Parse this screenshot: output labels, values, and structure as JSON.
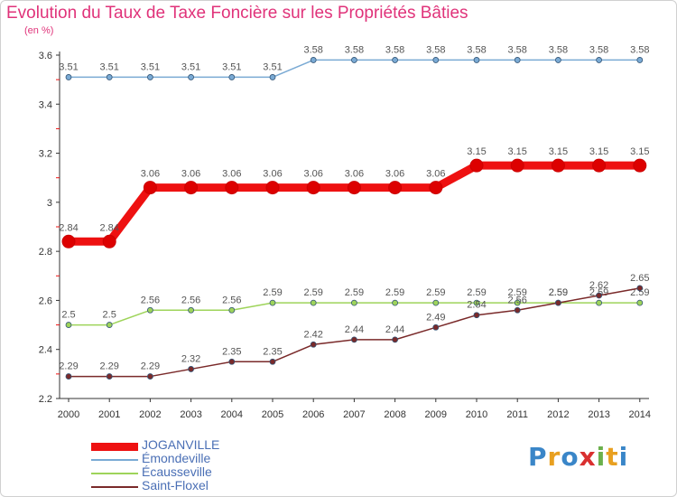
{
  "title": "Evolution du Taux de Taxe Foncière sur les Propriétés Bâties",
  "unit_label": "(en %)",
  "logo": {
    "letters": [
      "P",
      "r",
      "o",
      "x",
      "i",
      "t",
      "i"
    ],
    "colors": [
      "#3a86c8",
      "#e8a020",
      "#3a86c8",
      "#d93030",
      "#6ab04c",
      "#e8a020",
      "#3a86c8"
    ]
  },
  "chart_data": {
    "type": "line",
    "x": [
      "2000",
      "2001",
      "2002",
      "2003",
      "2004",
      "2005",
      "2006",
      "2007",
      "2008",
      "2009",
      "2010",
      "2011",
      "2012",
      "2013",
      "2014"
    ],
    "yticks": [
      "2.2",
      "2.4",
      "2.6",
      "2.8",
      "3",
      "3.2",
      "3.4",
      "3.6"
    ],
    "ylim": [
      2.2,
      3.6
    ],
    "grid": false,
    "legend_position": "bottom-left",
    "series": [
      {
        "name": "JOGANVILLE",
        "color": "#ee1111",
        "width": 9,
        "marker": 7,
        "values": [
          2.84,
          2.84,
          3.06,
          3.06,
          3.06,
          3.06,
          3.06,
          3.06,
          3.06,
          3.06,
          3.15,
          3.15,
          3.15,
          3.15,
          3.15
        ],
        "labels": [
          "2.84",
          "2.84",
          "3.06",
          "3.06",
          "3.06",
          "3.06",
          "3.06",
          "3.06",
          "3.06",
          "3.06",
          "3.15",
          "3.15",
          "3.15",
          "3.15",
          "3.15"
        ]
      },
      {
        "name": "Émondeville",
        "color": "#7aaad4",
        "width": 1.5,
        "marker": 3,
        "values": [
          3.51,
          3.51,
          3.51,
          3.51,
          3.51,
          3.51,
          3.58,
          3.58,
          3.58,
          3.58,
          3.58,
          3.58,
          3.58,
          3.58,
          3.58
        ],
        "labels": [
          "3.51",
          "3.51",
          "3.51",
          "3.51",
          "3.51",
          "3.51",
          "3.58",
          "3.58",
          "3.58",
          "3.58",
          "3.58",
          "3.58",
          "3.58",
          "3.58",
          "3.58"
        ]
      },
      {
        "name": "Écausseville",
        "color": "#9ed45a",
        "width": 1.5,
        "marker": 3,
        "values": [
          2.5,
          2.5,
          2.56,
          2.56,
          2.56,
          2.59,
          2.59,
          2.59,
          2.59,
          2.59,
          2.59,
          2.59,
          2.59,
          2.59,
          2.59
        ],
        "labels": [
          "2.5",
          "2.5",
          "2.56",
          "2.56",
          "2.56",
          "2.59",
          "2.59",
          "2.59",
          "2.59",
          "2.59",
          "2.59",
          "2.59",
          "2.59",
          "2.59",
          "2.59"
        ]
      },
      {
        "name": "Saint-Floxel",
        "color": "#7a2a2a",
        "width": 1.5,
        "marker": 3,
        "values": [
          2.29,
          2.29,
          2.29,
          2.32,
          2.35,
          2.35,
          2.42,
          2.44,
          2.44,
          2.49,
          2.54,
          2.56,
          2.59,
          2.62,
          2.65
        ],
        "labels": [
          "2.29",
          "2.29",
          "2.29",
          "2.32",
          "2.35",
          "2.35",
          "2.42",
          "2.44",
          "2.44",
          "2.49",
          "2.54",
          "2.56",
          "2.59",
          "2.62",
          "2.65"
        ]
      }
    ]
  }
}
